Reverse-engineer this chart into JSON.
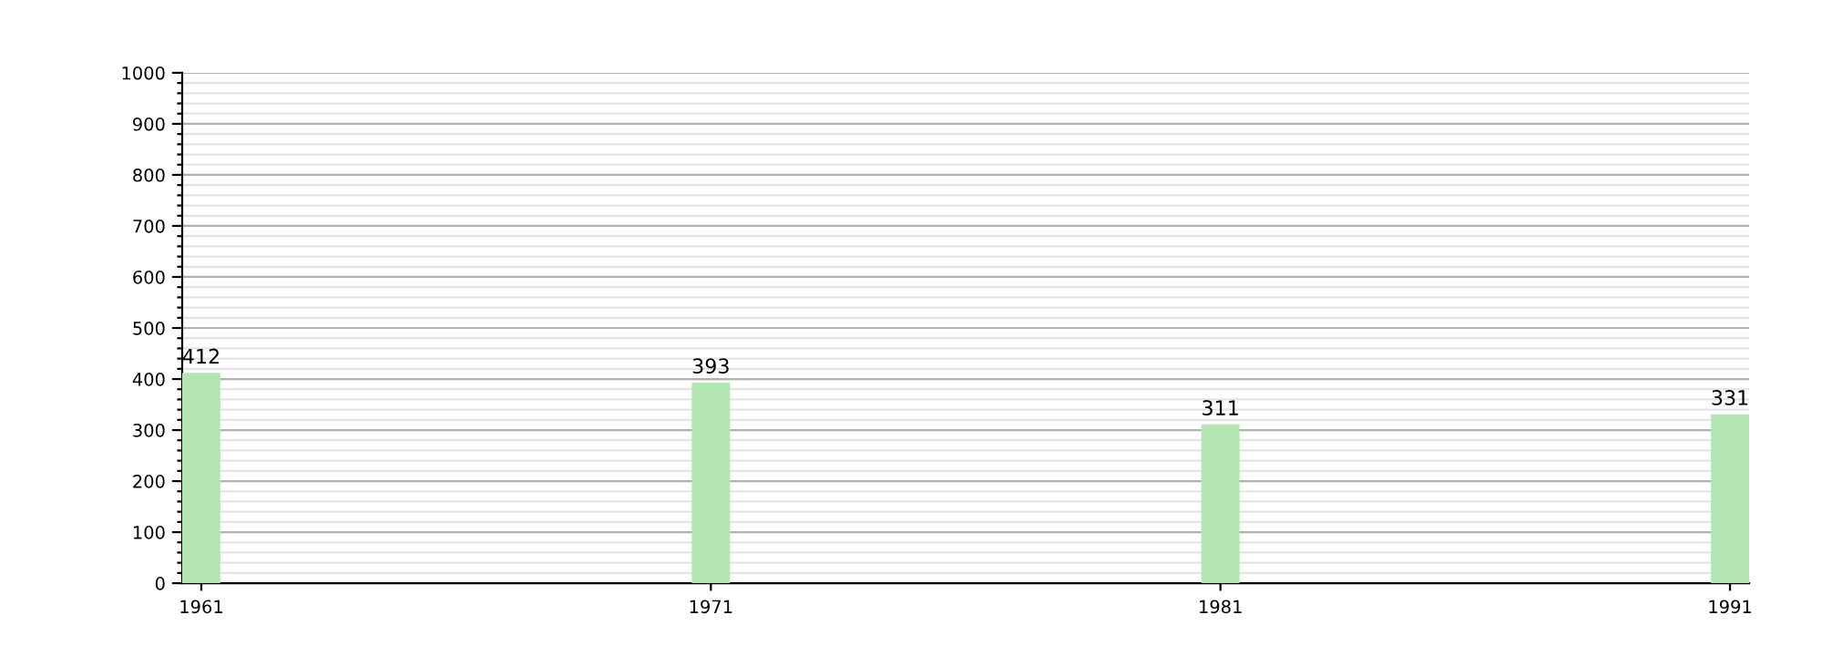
{
  "chart_data": {
    "type": "bar",
    "categories": [
      "1961",
      "1971",
      "1981",
      "1991"
    ],
    "values": [
      412,
      393,
      311,
      331
    ],
    "color": "#b3e6b3",
    "data_labels": true,
    "grid": "y",
    "ylim": [
      0,
      1000
    ],
    "yticks": [
      0,
      {
        "value": 20,
        "label": null
      },
      {
        "value": 40,
        "label": null
      },
      {
        "value": 60,
        "label": null
      },
      {
        "value": 80,
        "label": null
      },
      100,
      {
        "value": 120,
        "label": null
      },
      {
        "value": 140,
        "label": null
      },
      {
        "value": 160,
        "label": null
      },
      {
        "value": 180,
        "label": null
      },
      200,
      {
        "value": 220,
        "label": null
      },
      {
        "value": 240,
        "label": null
      },
      {
        "value": 260,
        "label": null
      },
      {
        "value": 280,
        "label": null
      },
      300,
      {
        "value": 320,
        "label": null
      },
      {
        "value": 340,
        "label": null
      },
      {
        "value": 360,
        "label": null
      },
      {
        "value": 380,
        "label": null
      },
      400,
      {
        "value": 420,
        "label": null
      },
      {
        "value": 440,
        "label": null
      },
      {
        "value": 460,
        "label": null
      },
      {
        "value": 480,
        "label": null
      },
      500,
      {
        "value": 520,
        "label": null
      },
      {
        "value": 540,
        "label": null
      },
      {
        "value": 560,
        "label": null
      },
      {
        "value": 580,
        "label": null
      },
      600,
      {
        "value": 620,
        "label": null
      },
      {
        "value": 640,
        "label": null
      },
      {
        "value": 660,
        "label": null
      },
      {
        "value": 680,
        "label": null
      },
      700,
      {
        "value": 720,
        "label": null
      },
      {
        "value": 740,
        "label": null
      },
      {
        "value": 760,
        "label": null
      },
      {
        "value": 780,
        "label": null
      },
      800,
      {
        "value": 820,
        "label": null
      },
      {
        "value": 840,
        "label": null
      },
      {
        "value": 860,
        "label": null
      },
      {
        "value": 880,
        "label": null
      },
      900,
      {
        "value": 920,
        "label": null
      },
      {
        "value": 940,
        "label": null
      },
      {
        "value": 960,
        "label": null
      },
      {
        "value": 980,
        "label": null
      },
      1000
    ]
  }
}
